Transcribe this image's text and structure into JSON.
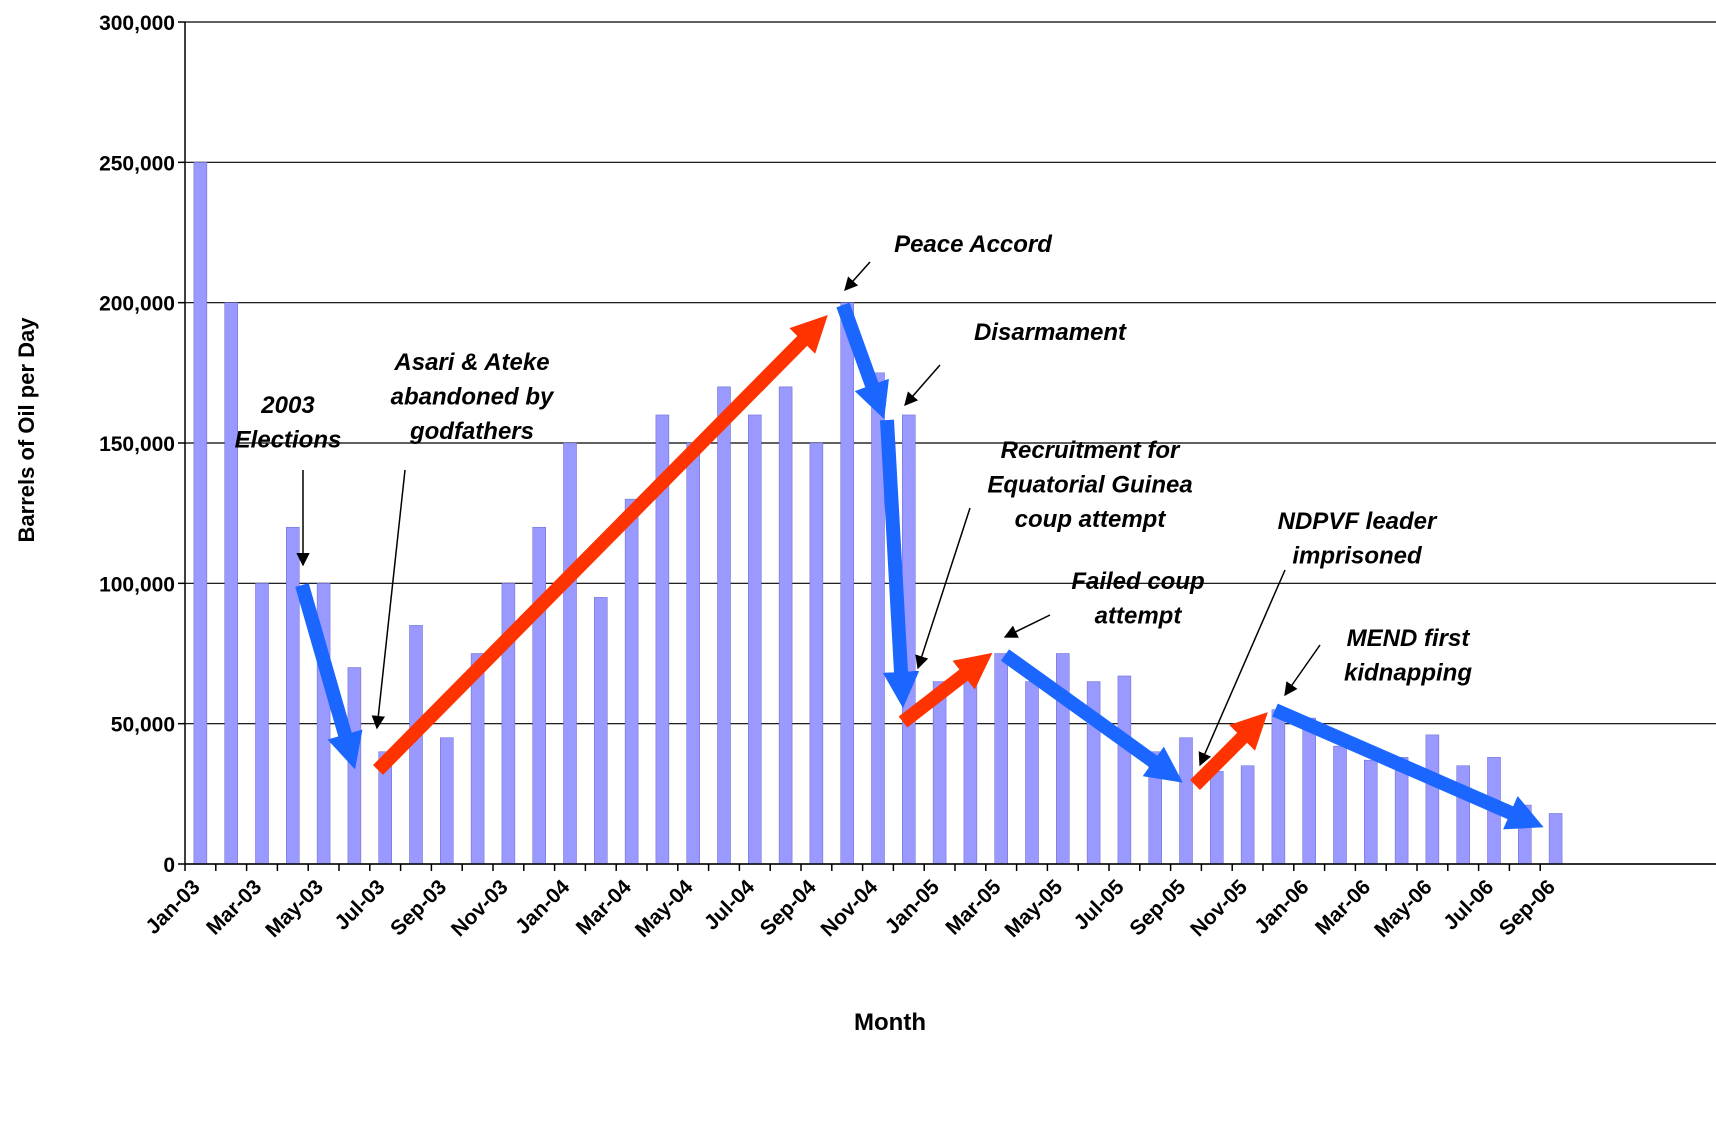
{
  "chart_data": {
    "type": "bar",
    "color": "#9999ff",
    "grid": true,
    "y_label": "Barrels of Oil per Day",
    "x_label": "Month",
    "categories": [
      "Jan-03",
      null,
      "Mar-03",
      null,
      "May-03",
      null,
      "Jul-03",
      null,
      "Sep-03",
      null,
      "Nov-03",
      null,
      "Jan-04",
      null,
      "Mar-04",
      null,
      "May-04",
      null,
      "Jul-04",
      null,
      "Sep-04",
      null,
      "Nov-04",
      null,
      "Jan-05",
      null,
      "Mar-05",
      null,
      "May-05",
      null,
      "Jul-05",
      null,
      "Sep-05",
      null,
      "Nov-05",
      null,
      "Jan-06",
      null,
      "Mar-06",
      null,
      "May-06",
      null,
      "Jul-06",
      null,
      "Sep-06"
    ],
    "values": [
      250000,
      200000,
      100000,
      120000,
      100000,
      70000,
      40000,
      85000,
      45000,
      75000,
      100000,
      120000,
      150000,
      95000,
      130000,
      160000,
      150000,
      170000,
      160000,
      170000,
      150000,
      200000,
      175000,
      160000,
      65000,
      65000,
      75000,
      65000,
      75000,
      65000,
      67000,
      40000,
      45000,
      33000,
      35000,
      55000,
      52000,
      42000,
      37000,
      38000,
      46000,
      35000,
      38000,
      21000,
      18000
    ],
    "ylim": [
      0,
      300000
    ],
    "yticks": [
      0,
      {
        "value": 50000,
        "label": "50,000"
      },
      {
        "value": 100000,
        "label": "100,000"
      },
      {
        "value": 150000,
        "label": "150,000"
      },
      {
        "value": 200000,
        "label": "200,000"
      },
      {
        "value": 250000,
        "label": "250,000"
      },
      {
        "value": 300000,
        "label": "300,000"
      }
    ],
    "annotations": [
      {
        "lines": [
          "2003",
          "Elections"
        ]
      },
      {
        "lines": [
          "Asari & Ateke",
          "abandoned by",
          "godfathers"
        ]
      },
      {
        "lines": [
          "Peace Accord"
        ]
      },
      {
        "lines": [
          "Disarmament"
        ]
      },
      {
        "lines": [
          "Recruitment for",
          "Equatorial Guinea",
          "coup attempt"
        ]
      },
      {
        "lines": [
          "Failed coup",
          "attempt"
        ]
      },
      {
        "lines": [
          "NDPVF leader",
          "imprisoned"
        ]
      },
      {
        "lines": [
          "MEND first",
          "kidnapping"
        ]
      }
    ]
  }
}
